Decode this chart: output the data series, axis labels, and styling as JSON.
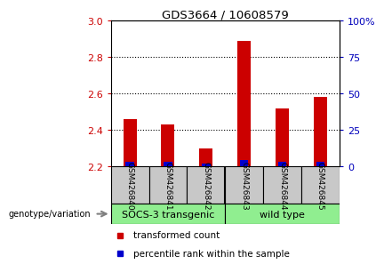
{
  "title": "GDS3664 / 10608579",
  "samples": [
    "GSM426840",
    "GSM426841",
    "GSM426842",
    "GSM426843",
    "GSM426844",
    "GSM426845"
  ],
  "red_values": [
    2.46,
    2.43,
    2.3,
    2.89,
    2.52,
    2.58
  ],
  "blue_values": [
    2.225,
    2.222,
    2.215,
    2.232,
    2.222,
    2.222
  ],
  "ylim": [
    2.2,
    3.0
  ],
  "yticks": [
    2.2,
    2.4,
    2.6,
    2.8,
    3.0
  ],
  "right_yticks": [
    0,
    25,
    50,
    75,
    100
  ],
  "group_labels": [
    "SOCS-3 transgenic",
    "wild type"
  ],
  "group_colors": [
    "#90EE90",
    "#90EE90"
  ],
  "bar_width": 0.35,
  "blue_bar_width": 0.22,
  "red_color": "#CC0000",
  "blue_color": "#0000CC",
  "left_tick_color": "#CC0000",
  "right_tick_color": "#0000BB",
  "bg_color": "#FFFFFF",
  "sample_bg": "#C8C8C8",
  "legend_red_label": "transformed count",
  "legend_blue_label": "percentile rank within the sample",
  "genotype_label": "genotype/variation"
}
